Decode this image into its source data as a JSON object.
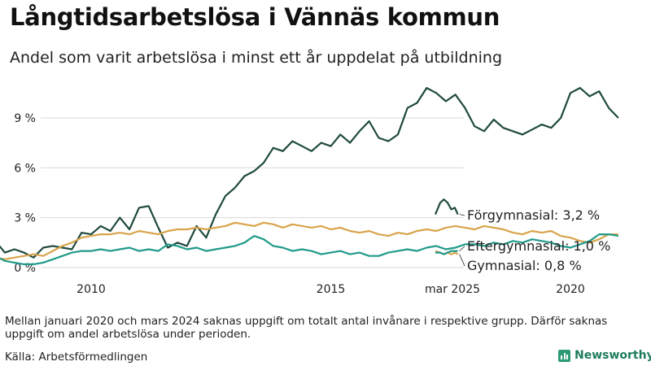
{
  "header": {
    "title": "Långtidsarbetslösa i Vännäs kommun",
    "subtitle": "Andel som varit arbetslösa i minst ett år uppdelat på utbildning"
  },
  "footer": {
    "note": "Mellan januari 2020 och mars 2024 saknas uppgift om totalt antal invånare i respektive grupp. Därför saknas uppgift om andel arbetslösa under perioden.",
    "source": "Källa: Arbetsförmedlingen",
    "brand": "Newsworthy"
  },
  "chart_data": {
    "type": "line",
    "title": "Långtidsarbetslösa i Vännäs kommun",
    "subtitle": "Andel som varit arbetslösa i minst ett år uppdelat på utbildning",
    "ylim": [
      0,
      11
    ],
    "y_ticks": [
      0,
      3,
      6,
      9
    ],
    "y_tick_labels": [
      "0 %",
      "3 %",
      "6 %",
      "9 %"
    ],
    "x_ticks": [
      2010,
      2015,
      2020
    ],
    "x_tick_labels": [
      "2010",
      "2015",
      "2020"
    ],
    "extra_x_label": "mar 2025",
    "grid": true,
    "legend": "direct labels at right",
    "series": [
      {
        "name": "Förgymnasial",
        "end_label": "Förgymnasial: 3,2 %",
        "color": "#1f4a3f",
        "points": [
          [
            2008.0,
            1.6
          ],
          [
            2008.2,
            0.9
          ],
          [
            2008.4,
            1.1
          ],
          [
            2008.6,
            0.9
          ],
          [
            2008.8,
            0.6
          ],
          [
            2009.0,
            1.2
          ],
          [
            2009.2,
            1.3
          ],
          [
            2009.4,
            1.2
          ],
          [
            2009.6,
            1.1
          ],
          [
            2009.8,
            2.1
          ],
          [
            2010.0,
            2.0
          ],
          [
            2010.2,
            2.5
          ],
          [
            2010.4,
            2.2
          ],
          [
            2010.6,
            3.0
          ],
          [
            2010.8,
            2.3
          ],
          [
            2011.0,
            3.6
          ],
          [
            2011.2,
            3.7
          ],
          [
            2011.4,
            2.4
          ],
          [
            2011.6,
            1.2
          ],
          [
            2011.8,
            1.5
          ],
          [
            2012.0,
            1.3
          ],
          [
            2012.2,
            2.5
          ],
          [
            2012.4,
            1.8
          ],
          [
            2012.6,
            3.2
          ],
          [
            2012.8,
            4.3
          ],
          [
            2013.0,
            4.8
          ],
          [
            2013.2,
            5.5
          ],
          [
            2013.4,
            5.8
          ],
          [
            2013.6,
            6.3
          ],
          [
            2013.8,
            7.2
          ],
          [
            2014.0,
            7.0
          ],
          [
            2014.2,
            7.6
          ],
          [
            2014.4,
            7.3
          ],
          [
            2014.6,
            7.0
          ],
          [
            2014.8,
            7.5
          ],
          [
            2015.0,
            7.3
          ],
          [
            2015.2,
            8.0
          ],
          [
            2015.4,
            7.5
          ],
          [
            2015.6,
            8.2
          ],
          [
            2015.8,
            8.8
          ],
          [
            2016.0,
            7.8
          ],
          [
            2016.2,
            7.6
          ],
          [
            2016.4,
            8.0
          ],
          [
            2016.6,
            9.6
          ],
          [
            2016.8,
            9.9
          ],
          [
            2017.0,
            10.8
          ],
          [
            2017.2,
            10.5
          ],
          [
            2017.4,
            10.0
          ],
          [
            2017.6,
            10.4
          ],
          [
            2017.8,
            9.6
          ],
          [
            2018.0,
            8.5
          ],
          [
            2018.2,
            8.2
          ],
          [
            2018.4,
            8.9
          ],
          [
            2018.6,
            8.4
          ],
          [
            2018.8,
            8.2
          ],
          [
            2019.0,
            8.0
          ],
          [
            2019.2,
            8.3
          ],
          [
            2019.4,
            8.6
          ],
          [
            2019.6,
            8.4
          ],
          [
            2019.8,
            9.0
          ],
          [
            2020.0,
            10.5
          ],
          [
            2020.2,
            10.8
          ],
          [
            2020.4,
            10.3
          ],
          [
            2020.6,
            10.6
          ],
          [
            2020.8,
            9.6
          ],
          [
            2021.0,
            9.0
          ]
        ],
        "recent_points": [
          [
            2024.25,
            3.2
          ],
          [
            2024.45,
            3.9
          ],
          [
            2024.6,
            4.1
          ],
          [
            2024.75,
            3.9
          ],
          [
            2024.9,
            3.5
          ],
          [
            2025.05,
            3.6
          ],
          [
            2025.17,
            3.2
          ]
        ]
      },
      {
        "name": "Gymnasial",
        "end_label": "Gymnasial: 0,8 %",
        "color": "#d8a44b",
        "points": [
          [
            2008.0,
            0.6
          ],
          [
            2008.2,
            0.5
          ],
          [
            2008.4,
            0.6
          ],
          [
            2008.6,
            0.7
          ],
          [
            2008.8,
            0.8
          ],
          [
            2009.0,
            0.7
          ],
          [
            2009.2,
            1.0
          ],
          [
            2009.4,
            1.3
          ],
          [
            2009.6,
            1.5
          ],
          [
            2009.8,
            1.8
          ],
          [
            2010.0,
            1.9
          ],
          [
            2010.2,
            2.0
          ],
          [
            2010.4,
            2.0
          ],
          [
            2010.6,
            2.1
          ],
          [
            2010.8,
            2.0
          ],
          [
            2011.0,
            2.2
          ],
          [
            2011.2,
            2.1
          ],
          [
            2011.4,
            2.0
          ],
          [
            2011.6,
            2.2
          ],
          [
            2011.8,
            2.3
          ],
          [
            2012.0,
            2.3
          ],
          [
            2012.2,
            2.4
          ],
          [
            2012.4,
            2.3
          ],
          [
            2012.6,
            2.4
          ],
          [
            2012.8,
            2.5
          ],
          [
            2013.0,
            2.7
          ],
          [
            2013.2,
            2.6
          ],
          [
            2013.4,
            2.5
          ],
          [
            2013.6,
            2.7
          ],
          [
            2013.8,
            2.6
          ],
          [
            2014.0,
            2.4
          ],
          [
            2014.2,
            2.6
          ],
          [
            2014.4,
            2.5
          ],
          [
            2014.6,
            2.4
          ],
          [
            2014.8,
            2.5
          ],
          [
            2015.0,
            2.3
          ],
          [
            2015.2,
            2.4
          ],
          [
            2015.4,
            2.2
          ],
          [
            2015.6,
            2.1
          ],
          [
            2015.8,
            2.2
          ],
          [
            2016.0,
            2.0
          ],
          [
            2016.2,
            1.9
          ],
          [
            2016.4,
            2.1
          ],
          [
            2016.6,
            2.0
          ],
          [
            2016.8,
            2.2
          ],
          [
            2017.0,
            2.3
          ],
          [
            2017.2,
            2.2
          ],
          [
            2017.4,
            2.4
          ],
          [
            2017.6,
            2.5
          ],
          [
            2017.8,
            2.4
          ],
          [
            2018.0,
            2.3
          ],
          [
            2018.2,
            2.5
          ],
          [
            2018.4,
            2.4
          ],
          [
            2018.6,
            2.3
          ],
          [
            2018.8,
            2.1
          ],
          [
            2019.0,
            2.0
          ],
          [
            2019.2,
            2.2
          ],
          [
            2019.4,
            2.1
          ],
          [
            2019.6,
            2.2
          ],
          [
            2019.8,
            1.9
          ],
          [
            2020.0,
            1.8
          ],
          [
            2020.2,
            1.6
          ],
          [
            2020.4,
            1.5
          ],
          [
            2020.6,
            1.7
          ],
          [
            2020.8,
            2.0
          ],
          [
            2021.0,
            2.0
          ]
        ],
        "recent_points": [
          [
            2024.25,
            1.0
          ],
          [
            2024.45,
            0.9
          ],
          [
            2024.6,
            0.8
          ],
          [
            2024.75,
            0.9
          ],
          [
            2024.9,
            0.8
          ],
          [
            2025.05,
            0.9
          ],
          [
            2025.17,
            0.8
          ]
        ]
      },
      {
        "name": "Eftergymnasial",
        "end_label": "Eftergymnasial: 1,0 %",
        "color": "#1f9a8a",
        "points": [
          [
            2008.0,
            0.7
          ],
          [
            2008.2,
            0.4
          ],
          [
            2008.4,
            0.3
          ],
          [
            2008.6,
            0.2
          ],
          [
            2008.8,
            0.2
          ],
          [
            2009.0,
            0.3
          ],
          [
            2009.2,
            0.5
          ],
          [
            2009.4,
            0.7
          ],
          [
            2009.6,
            0.9
          ],
          [
            2009.8,
            1.0
          ],
          [
            2010.0,
            1.0
          ],
          [
            2010.2,
            1.1
          ],
          [
            2010.4,
            1.0
          ],
          [
            2010.6,
            1.1
          ],
          [
            2010.8,
            1.2
          ],
          [
            2011.0,
            1.0
          ],
          [
            2011.2,
            1.1
          ],
          [
            2011.4,
            1.0
          ],
          [
            2011.6,
            1.4
          ],
          [
            2011.8,
            1.3
          ],
          [
            2012.0,
            1.1
          ],
          [
            2012.2,
            1.2
          ],
          [
            2012.4,
            1.0
          ],
          [
            2012.6,
            1.1
          ],
          [
            2012.8,
            1.2
          ],
          [
            2013.0,
            1.3
          ],
          [
            2013.2,
            1.5
          ],
          [
            2013.4,
            1.9
          ],
          [
            2013.6,
            1.7
          ],
          [
            2013.8,
            1.3
          ],
          [
            2014.0,
            1.2
          ],
          [
            2014.2,
            1.0
          ],
          [
            2014.4,
            1.1
          ],
          [
            2014.6,
            1.0
          ],
          [
            2014.8,
            0.8
          ],
          [
            2015.0,
            0.9
          ],
          [
            2015.2,
            1.0
          ],
          [
            2015.4,
            0.8
          ],
          [
            2015.6,
            0.9
          ],
          [
            2015.8,
            0.7
          ],
          [
            2016.0,
            0.7
          ],
          [
            2016.2,
            0.9
          ],
          [
            2016.4,
            1.0
          ],
          [
            2016.6,
            1.1
          ],
          [
            2016.8,
            1.0
          ],
          [
            2017.0,
            1.2
          ],
          [
            2017.2,
            1.3
          ],
          [
            2017.4,
            1.1
          ],
          [
            2017.6,
            1.2
          ],
          [
            2017.8,
            1.4
          ],
          [
            2018.0,
            1.4
          ],
          [
            2018.2,
            1.3
          ],
          [
            2018.4,
            1.5
          ],
          [
            2018.6,
            1.4
          ],
          [
            2018.8,
            1.6
          ],
          [
            2019.0,
            1.5
          ],
          [
            2019.2,
            1.7
          ],
          [
            2019.4,
            1.6
          ],
          [
            2019.6,
            1.5
          ],
          [
            2019.8,
            1.3
          ],
          [
            2020.0,
            1.2
          ],
          [
            2020.2,
            1.4
          ],
          [
            2020.4,
            1.6
          ],
          [
            2020.6,
            2.0
          ],
          [
            2020.8,
            2.0
          ],
          [
            2021.0,
            1.9
          ]
        ],
        "recent_points": [
          [
            2024.25,
            0.9
          ],
          [
            2024.45,
            0.9
          ],
          [
            2024.6,
            0.8
          ],
          [
            2024.75,
            0.9
          ],
          [
            2024.9,
            1.0
          ],
          [
            2025.05,
            1.0
          ],
          [
            2025.17,
            1.0
          ]
        ]
      }
    ]
  }
}
